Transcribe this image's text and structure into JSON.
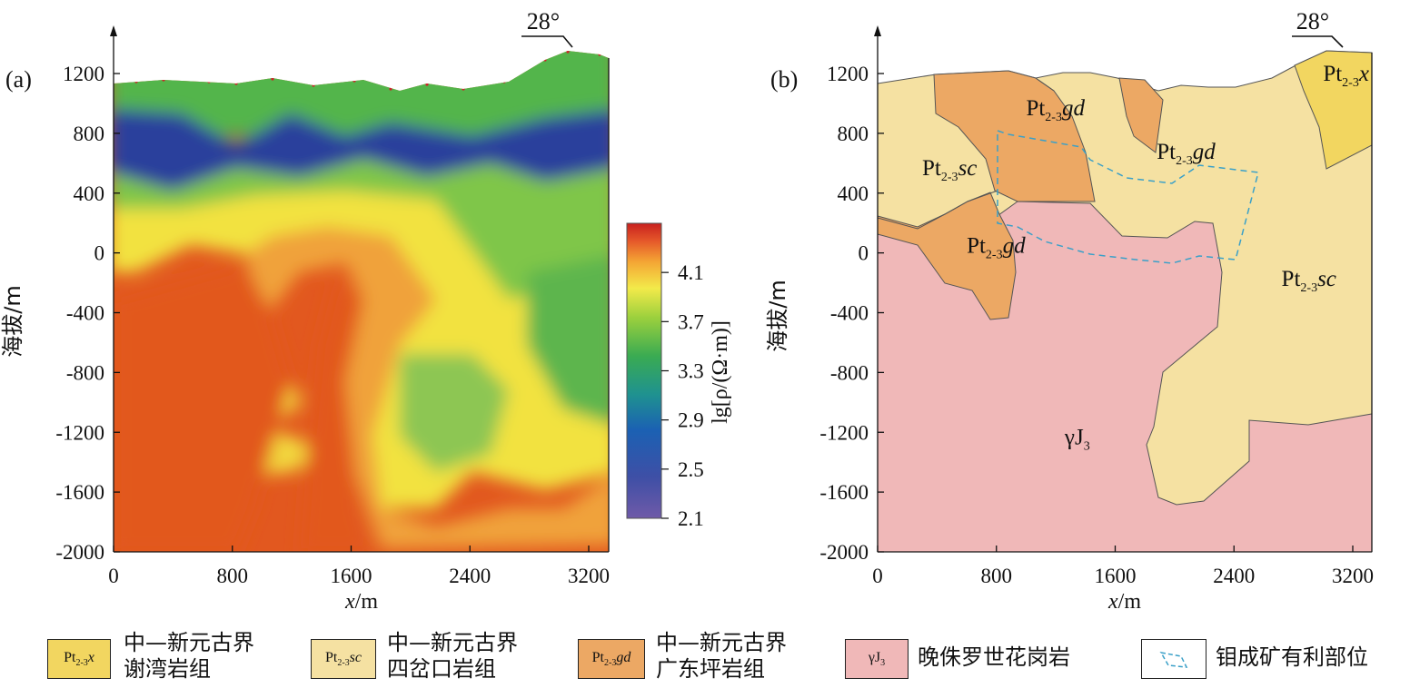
{
  "chart_data": [
    {
      "panel": "(a)",
      "type": "heatmap",
      "north_label": "28°",
      "xlabel_var": "x",
      "xlabel_unit": "/m",
      "ylabel": "海拔/m",
      "x_ticks": [
        0,
        800,
        1600,
        2400,
        3200
      ],
      "y_ticks": [
        1200,
        800,
        400,
        0,
        -400,
        -800,
        -1200,
        -1600,
        -2000
      ],
      "xlim": [
        0,
        3300
      ],
      "ylim": [
        -2000,
        1400
      ],
      "colorbar": {
        "label": "lg[ρ/(Ω·m)]",
        "ticks": [
          4.1,
          3.7,
          3.3,
          2.9,
          2.5,
          2.1
        ],
        "range": [
          2.1,
          4.5
        ],
        "colors": [
          "#6f5aa8",
          "#2f4fa8",
          "#1c7fb8",
          "#2aa66a",
          "#8fcf3f",
          "#f4ea4a",
          "#f4a534",
          "#e5582a",
          "#c8201e"
        ]
      },
      "zones": [
        {
          "name": "surface high-resistivity band",
          "value": 3.6
        },
        {
          "name": "shallow low-resistivity band",
          "value": 2.6
        },
        {
          "name": "deep high-resistivity body",
          "value": 4.5
        },
        {
          "name": "central low-resistivity body",
          "value": 3.8
        },
        {
          "name": "eastern low-resistivity body",
          "value": 3.6
        }
      ]
    },
    {
      "panel": "(b)",
      "type": "geologic-section",
      "north_label": "28°",
      "xlabel_var": "x",
      "xlabel_unit": "/m",
      "ylabel": "海拔/m",
      "x_ticks": [
        0,
        800,
        1600,
        2400,
        3200
      ],
      "y_ticks": [
        1200,
        800,
        400,
        0,
        -400,
        -800,
        -1200,
        -1600,
        -2000
      ],
      "xlim": [
        0,
        3300
      ],
      "ylim": [
        -2000,
        1400
      ],
      "units": [
        {
          "label_base": "Pt",
          "label_sub": "2-3",
          "label_ital": "x",
          "at": [
            3000,
            1150
          ]
        },
        {
          "label_base": "Pt",
          "label_sub": "2-3",
          "label_ital": "gd",
          "at": [
            1000,
            920
          ]
        },
        {
          "label_base": "Pt",
          "label_sub": "2-3",
          "label_ital": "sc",
          "at": [
            300,
            520
          ]
        },
        {
          "label_base": "Pt",
          "label_sub": "2-3",
          "label_ital": "gd",
          "at": [
            1880,
            630
          ]
        },
        {
          "label_base": "Pt",
          "label_sub": "2-3",
          "label_ital": "gd",
          "at": [
            600,
            0
          ]
        },
        {
          "label_base": "Pt",
          "label_sub": "2-3",
          "label_ital": "sc",
          "at": [
            2720,
            -220
          ]
        },
        {
          "label_base": "γJ",
          "label_sub": "3",
          "label_ital": "",
          "at": [
            1260,
            -1280
          ]
        }
      ],
      "prospect_outline": "dashed"
    }
  ],
  "legend": [
    {
      "swatch": "Pt",
      "sub": "2-3",
      "ital": "x",
      "color": "#f2d660",
      "line1": "中—新元古界",
      "line2": "谢湾岩组"
    },
    {
      "swatch": "Pt",
      "sub": "2-3",
      "ital": "sc",
      "color": "#f5e1a2",
      "line1": "中—新元古界",
      "line2": "四岔口岩组"
    },
    {
      "swatch": "Pt",
      "sub": "2-3",
      "ital": "gd",
      "color": "#eca864",
      "line1": "中—新元古界",
      "line2": "广东坪岩组"
    },
    {
      "swatch": "γJ",
      "sub": "3",
      "ital": "",
      "color": "#f0b8b8",
      "line1": "晚侏罗世花岗岩",
      "line2": ""
    },
    {
      "swatch": "",
      "sub": "",
      "ital": "",
      "color": "#ffffff",
      "line1": "钼成矿有利部位",
      "line2": ""
    }
  ]
}
